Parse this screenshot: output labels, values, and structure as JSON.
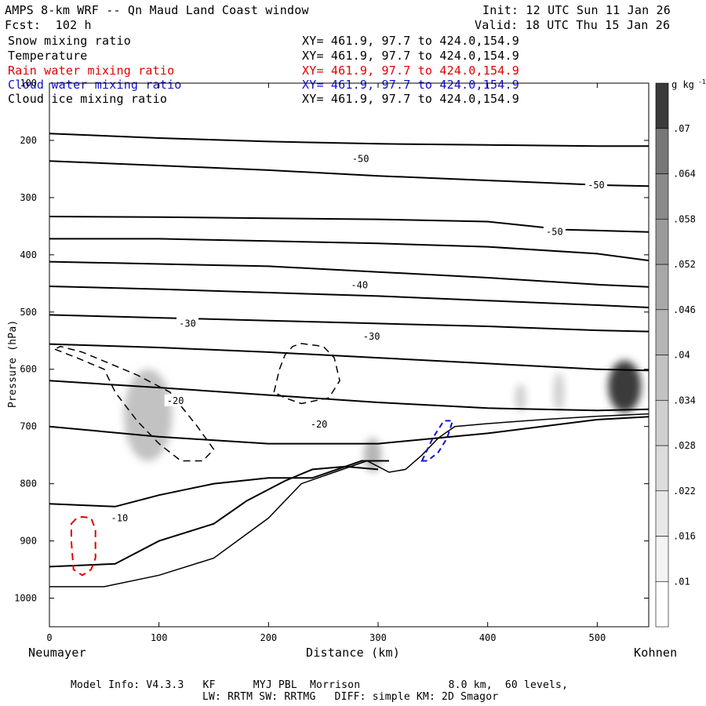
{
  "header": {
    "model_title": "AMPS 8-km WRF -- Qn Maud Land Coast window",
    "forecast": "Fcst:  102 h",
    "init": "Init: 12 UTC Sun 11 Jan 26",
    "valid": "Valid: 18 UTC Thu 15 Jan 26"
  },
  "fields": [
    {
      "name": "Snow mixing ratio",
      "xy": "XY= 461.9, 97.7 to 424.0,154.9",
      "color": "#000000"
    },
    {
      "name": "Temperature",
      "xy": "XY= 461.9, 97.7 to 424.0,154.9",
      "color": "#000000"
    },
    {
      "name": "Rain water mixing ratio",
      "xy": "XY= 461.9, 97.7 to 424.0,154.9",
      "color": "#e00000"
    },
    {
      "name": "Cloud water mixing ratio",
      "xy": "XY= 461.9, 97.7 to 424.0,154.9",
      "color": "#1010d0"
    },
    {
      "name": "Cloud ice mixing ratio",
      "xy": "XY= 461.9, 97.7 to 424.0,154.9",
      "color": "#000000"
    }
  ],
  "footer": {
    "model_info": "Model Info: V4.3.3   KF      MYJ PBL  Morrison              8.0 km,  60 levels,",
    "physics": "LW: RRTM SW: RRTMG   DIFF: simple KM: 2D Smagor"
  },
  "chart_data": {
    "type": "cross-section",
    "xlabel": "Distance (km)",
    "ylabel": "Pressure (hPa)",
    "x_left_label": "Neumayer",
    "x_right_label": "Kohnen",
    "xlim": [
      0,
      547
    ],
    "ylim": [
      1050,
      100
    ],
    "x_ticks": [
      0,
      100,
      200,
      300,
      400,
      500
    ],
    "y_ticks": [
      1000,
      900,
      800,
      700,
      600,
      500,
      400,
      300,
      200,
      100
    ],
    "colorbar": {
      "units": "g kg",
      "units_exp": "-1",
      "levels": [
        0.01,
        0.016,
        0.022,
        0.028,
        0.034,
        0.04,
        0.046,
        0.052,
        0.058,
        0.064,
        0.07
      ],
      "level_labels": [
        ".01",
        ".016",
        ".022",
        ".028",
        ".034",
        ".04",
        ".046",
        ".052",
        ".058",
        ".064",
        ".07"
      ],
      "colors": [
        "#ffffff",
        "#f4f4f4",
        "#e8e8e8",
        "#dcdcdc",
        "#cfcfcf",
        "#c2c2c2",
        "#b5b5b5",
        "#a8a8a8",
        "#9a9a9a",
        "#8a8a8a",
        "#777777",
        "#3a3a3a"
      ]
    },
    "temperature_labels": [
      {
        "text": "-50",
        "x": 284,
        "p": 232
      },
      {
        "text": "-50",
        "x": 499,
        "p": 278
      },
      {
        "text": "-50",
        "x": 461,
        "p": 360
      },
      {
        "text": "-40",
        "x": 283,
        "p": 453
      },
      {
        "text": "-30",
        "x": 126,
        "p": 520
      },
      {
        "text": "-30",
        "x": 294,
        "p": 543
      },
      {
        "text": "-20",
        "x": 115,
        "p": 655
      },
      {
        "text": "-20",
        "x": 246,
        "p": 696
      },
      {
        "text": "-10",
        "x": 64,
        "p": 860
      }
    ],
    "isotherms": [
      {
        "x": [
          0,
          100,
          200,
          300,
          400,
          500,
          547
        ],
        "p": [
          188,
          196,
          202,
          206,
          208,
          210,
          210
        ]
      },
      {
        "x": [
          0,
          100,
          200,
          300,
          400,
          500,
          547
        ],
        "p": [
          236,
          244,
          252,
          262,
          270,
          278,
          280
        ]
      },
      {
        "x": [
          0,
          100,
          200,
          300,
          400,
          470,
          547
        ],
        "p": [
          333,
          334,
          336,
          338,
          342,
          356,
          360
        ]
      },
      {
        "x": [
          0,
          100,
          200,
          300,
          400,
          500,
          547
        ],
        "p": [
          372,
          372,
          376,
          380,
          386,
          398,
          410
        ]
      },
      {
        "x": [
          0,
          100,
          200,
          300,
          400,
          500,
          547
        ],
        "p": [
          412,
          416,
          420,
          430,
          440,
          452,
          456
        ]
      },
      {
        "x": [
          0,
          100,
          200,
          300,
          400,
          500,
          547
        ],
        "p": [
          455,
          460,
          466,
          472,
          480,
          488,
          492
        ]
      },
      {
        "x": [
          0,
          100,
          200,
          300,
          400,
          500,
          547
        ],
        "p": [
          505,
          510,
          515,
          520,
          525,
          532,
          534
        ]
      },
      {
        "x": [
          0,
          100,
          200,
          300,
          400,
          500,
          547
        ],
        "p": [
          556,
          562,
          570,
          580,
          590,
          600,
          602
        ]
      },
      {
        "x": [
          0,
          100,
          200,
          300,
          400,
          500,
          547
        ],
        "p": [
          620,
          632,
          645,
          658,
          668,
          672,
          670
        ]
      },
      {
        "x": [
          0,
          100,
          200,
          300,
          400,
          500,
          547
        ],
        "p": [
          700,
          718,
          730,
          730,
          712,
          688,
          683
        ]
      },
      {
        "x": [
          0,
          60,
          100,
          150,
          200,
          240,
          285,
          310
        ],
        "p": [
          835,
          840,
          820,
          800,
          790,
          790,
          760,
          760
        ]
      },
      {
        "x": [
          0,
          60,
          100,
          150,
          180,
          215,
          240,
          270,
          300
        ],
        "p": [
          945,
          940,
          900,
          870,
          830,
          795,
          775,
          770,
          775
        ]
      }
    ],
    "terrain": {
      "x": [
        0,
        50,
        100,
        150,
        200,
        230,
        260,
        290,
        310,
        325,
        340,
        355,
        370,
        400,
        450,
        500,
        547
      ],
      "p": [
        980,
        980,
        960,
        930,
        860,
        800,
        780,
        760,
        780,
        775,
        750,
        720,
        700,
        695,
        688,
        682,
        678
      ]
    },
    "cloud_ice": [
      {
        "x": [
          5,
          25,
          50,
          60,
          80,
          100,
          120,
          140,
          150,
          135,
          110,
          80,
          55,
          30,
          10
        ],
        "p": [
          565,
          580,
          600,
          640,
          690,
          730,
          760,
          760,
          740,
          700,
          640,
          610,
          590,
          570,
          560
        ]
      },
      {
        "x": [
          205,
          210,
          215,
          222,
          230,
          250,
          260,
          265,
          255,
          230,
          215,
          205
        ],
        "p": [
          640,
          600,
          575,
          560,
          555,
          560,
          580,
          620,
          650,
          660,
          650,
          640
        ]
      }
    ],
    "rain_water": [
      {
        "x": [
          20,
          25,
          30,
          38,
          42,
          42,
          38,
          30,
          22,
          20
        ],
        "p": [
          870,
          860,
          858,
          860,
          880,
          930,
          950,
          960,
          950,
          900
        ]
      }
    ],
    "cloud_water": [
      {
        "x": [
          340,
          350,
          360,
          368,
          363,
          355,
          345,
          340
        ],
        "p": [
          760,
          720,
          690,
          690,
          720,
          745,
          760,
          760
        ]
      }
    ],
    "snow_blobs": [
      {
        "x": 90,
        "p": 680,
        "rx": 22,
        "rp": 80,
        "level": 0.034
      },
      {
        "x": 295,
        "p": 750,
        "rx": 8,
        "rp": 30,
        "level": 0.04
      },
      {
        "x": 430,
        "p": 650,
        "rx": 5,
        "rp": 25,
        "level": 0.028
      },
      {
        "x": 465,
        "p": 640,
        "rx": 5,
        "rp": 35,
        "level": 0.028
      },
      {
        "x": 525,
        "p": 630,
        "rx": 15,
        "rp": 45,
        "level": 0.07
      }
    ]
  }
}
